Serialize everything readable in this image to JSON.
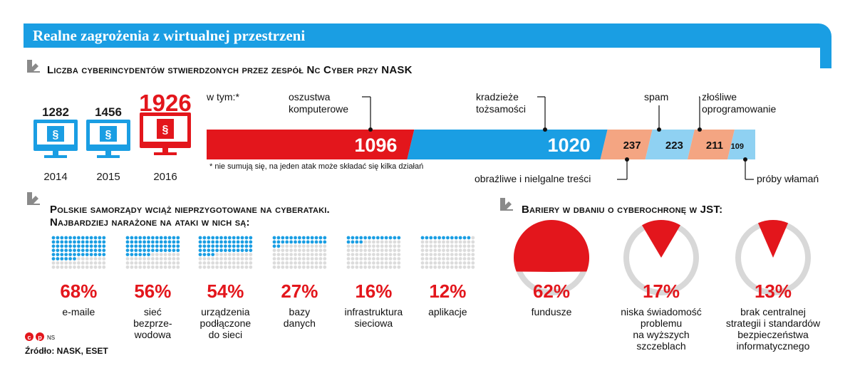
{
  "title": "Realne zagrożenia z wirtualnej przestrzeni",
  "section1": {
    "title": "Liczba cyberincydentów stwierdzonych przez zespół Nc Cyber przy NASK"
  },
  "section2": {
    "title_line1": "Polskie samorządy wciąż nieprzygotowane na cyberataki.",
    "title_line2": "Najbardziej narażone na ataki w nich są:"
  },
  "section3": {
    "title": "Bariery w dbaniu o cyberochronę w JST:"
  },
  "intw_label": "w tym:*",
  "footnote": "* nie sumują się, na jeden atak może składać się kilka działań",
  "source": "Źródło: NASK, ESET",
  "credit": "NS",
  "colors": {
    "blue": "#1a9ee3",
    "red": "#e3161c",
    "salmon": "#f4a582",
    "lightblue": "#8fd1f2",
    "grey": "#d8d8d8"
  },
  "chart_data": [
    {
      "type": "bar",
      "categories": [
        "2014",
        "2015",
        "2016"
      ],
      "values": [
        1282,
        1456,
        1926
      ],
      "value_labels": [
        "1282",
        "1456",
        "1926"
      ],
      "icon": "computer-monitor-icon"
    },
    {
      "type": "bar",
      "orientation": "stacked-horizontal",
      "categories": [
        "oszustwa komputerowe",
        "kradzieże tożsamości",
        "obraźliwe i nielgalne treści",
        "spam",
        "złośliwe oprogramowanie",
        "próby włamań"
      ],
      "callouts": [
        {
          "line1": "oszustwa",
          "line2": "komputerowe"
        },
        {
          "line1": "kradzieże",
          "line2": "tożsamości"
        },
        {
          "line1": "obraźliwe i nielgalne treści",
          "line2": ""
        },
        {
          "line1": "spam",
          "line2": ""
        },
        {
          "line1": "złośliwe",
          "line2": "oprogramowanie"
        },
        {
          "line1": "próby włamań",
          "line2": ""
        }
      ],
      "values": [
        1096,
        1020,
        237,
        223,
        211,
        109
      ],
      "value_labels": [
        "1096",
        "1020",
        "237",
        "223",
        "211",
        "109"
      ],
      "colors": [
        "#e3161c",
        "#1a9ee3",
        "#f4a582",
        "#8fd1f2",
        "#f4a582",
        "#8fd1f2"
      ]
    },
    {
      "type": "bar",
      "orientation": "dot-matrix",
      "categories": [
        "e-maile",
        "sieć bezprzewodowa",
        "urządzenia podłączone do sieci",
        "bazy danych",
        "infrastruktura sieciowa",
        "aplikacje"
      ],
      "label_lines": [
        [
          "e-maile"
        ],
        [
          "sieć",
          "bezprze-",
          "wodowa"
        ],
        [
          "urządzenia",
          "podłączone",
          "do sieci"
        ],
        [
          "bazy",
          "danych"
        ],
        [
          "infrastruktura",
          "sieciowa"
        ],
        [
          "aplikacje"
        ]
      ],
      "values": [
        68,
        56,
        54,
        27,
        16,
        12
      ],
      "value_labels": [
        "68%",
        "56%",
        "54%",
        "27%",
        "16%",
        "12%"
      ],
      "unit": "%"
    },
    {
      "type": "pie",
      "categories": [
        "fundusze",
        "niska świadomość problemu na wyższych szczeblach",
        "brak centralnej strategii i standardów bezpieczeństwa informatycznego"
      ],
      "label_lines": [
        [
          "fundusze"
        ],
        [
          "niska świadomość",
          "problemu",
          "na wyższych",
          "szczeblach"
        ],
        [
          "brak centralnej",
          "strategii i standardów",
          "bezpieczeństwa",
          "informatycznego"
        ]
      ],
      "values": [
        62,
        17,
        13
      ],
      "value_labels": [
        "62%",
        "17%",
        "13%"
      ],
      "unit": "%"
    }
  ]
}
